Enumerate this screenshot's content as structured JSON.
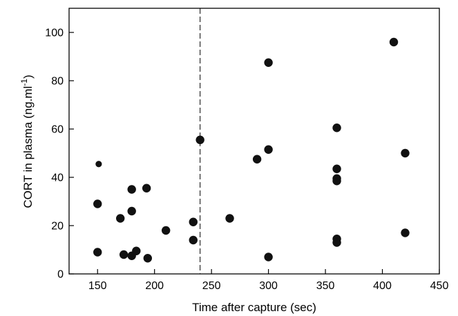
{
  "chart_data": {
    "type": "scatter",
    "xlabel": "Time after capture (sec)",
    "ylabel_main": "CORT in plasma (ng.ml",
    "ylabel_sup": "-1",
    "ylabel_close": ")",
    "xlim": [
      125,
      450
    ],
    "ylim": [
      0,
      110
    ],
    "xticks": [
      150,
      200,
      250,
      300,
      350,
      400,
      450
    ],
    "yticks": [
      0,
      20,
      40,
      60,
      80,
      100
    ],
    "reference_line_x": 240,
    "reference_line_style": "dashed",
    "marker_color": "#111111",
    "points": [
      {
        "x": 150,
        "y": 29.0
      },
      {
        "x": 150,
        "y": 9.0
      },
      {
        "x": 151,
        "y": 45.5,
        "small": true
      },
      {
        "x": 170,
        "y": 23.0
      },
      {
        "x": 173,
        "y": 8.0
      },
      {
        "x": 180,
        "y": 35.0
      },
      {
        "x": 180,
        "y": 26.0
      },
      {
        "x": 180,
        "y": 7.5
      },
      {
        "x": 184,
        "y": 9.5
      },
      {
        "x": 193,
        "y": 35.5
      },
      {
        "x": 194,
        "y": 6.5
      },
      {
        "x": 210,
        "y": 18.0
      },
      {
        "x": 234,
        "y": 21.5
      },
      {
        "x": 234,
        "y": 14.0
      },
      {
        "x": 240,
        "y": 55.5
      },
      {
        "x": 266,
        "y": 23.0
      },
      {
        "x": 290,
        "y": 47.5
      },
      {
        "x": 300,
        "y": 87.5
      },
      {
        "x": 300,
        "y": 51.5
      },
      {
        "x": 300,
        "y": 7.0
      },
      {
        "x": 360,
        "y": 60.5
      },
      {
        "x": 360,
        "y": 43.5
      },
      {
        "x": 360,
        "y": 39.5
      },
      {
        "x": 360,
        "y": 38.5
      },
      {
        "x": 360,
        "y": 14.5
      },
      {
        "x": 360,
        "y": 13.0
      },
      {
        "x": 410,
        "y": 96.0
      },
      {
        "x": 420,
        "y": 50.0
      },
      {
        "x": 420,
        "y": 17.0
      }
    ]
  }
}
